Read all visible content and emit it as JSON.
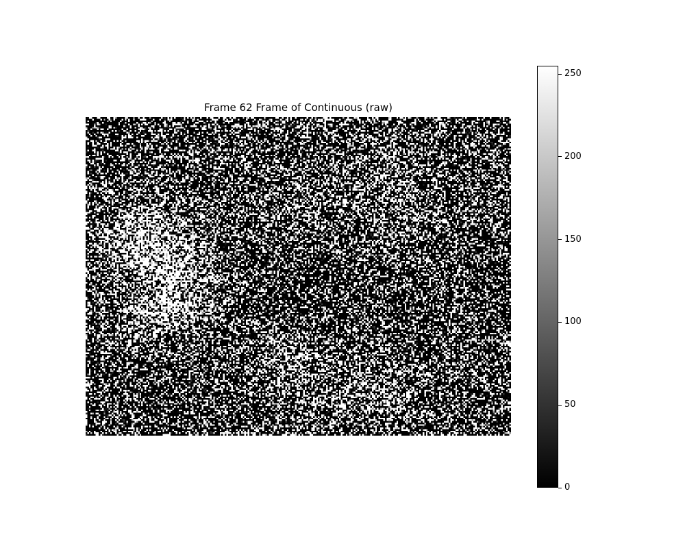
{
  "chart_data": {
    "type": "heatmap",
    "title": "Frame 62 Frame of Continuous (raw)",
    "colormap": "gray",
    "value_range": [
      0,
      255
    ],
    "grid_size": {
      "cols": 260,
      "rows": 195
    },
    "description_of_values": "raw sensor intensities, mostly binary black/white speckle noise with brighter clustered region left-center",
    "colorbar": {
      "ticks": [
        0,
        50,
        100,
        150,
        200,
        250
      ],
      "tick_labels": [
        "0",
        "50",
        "100",
        "150",
        "200",
        "250"
      ]
    },
    "axes_visible": false
  }
}
